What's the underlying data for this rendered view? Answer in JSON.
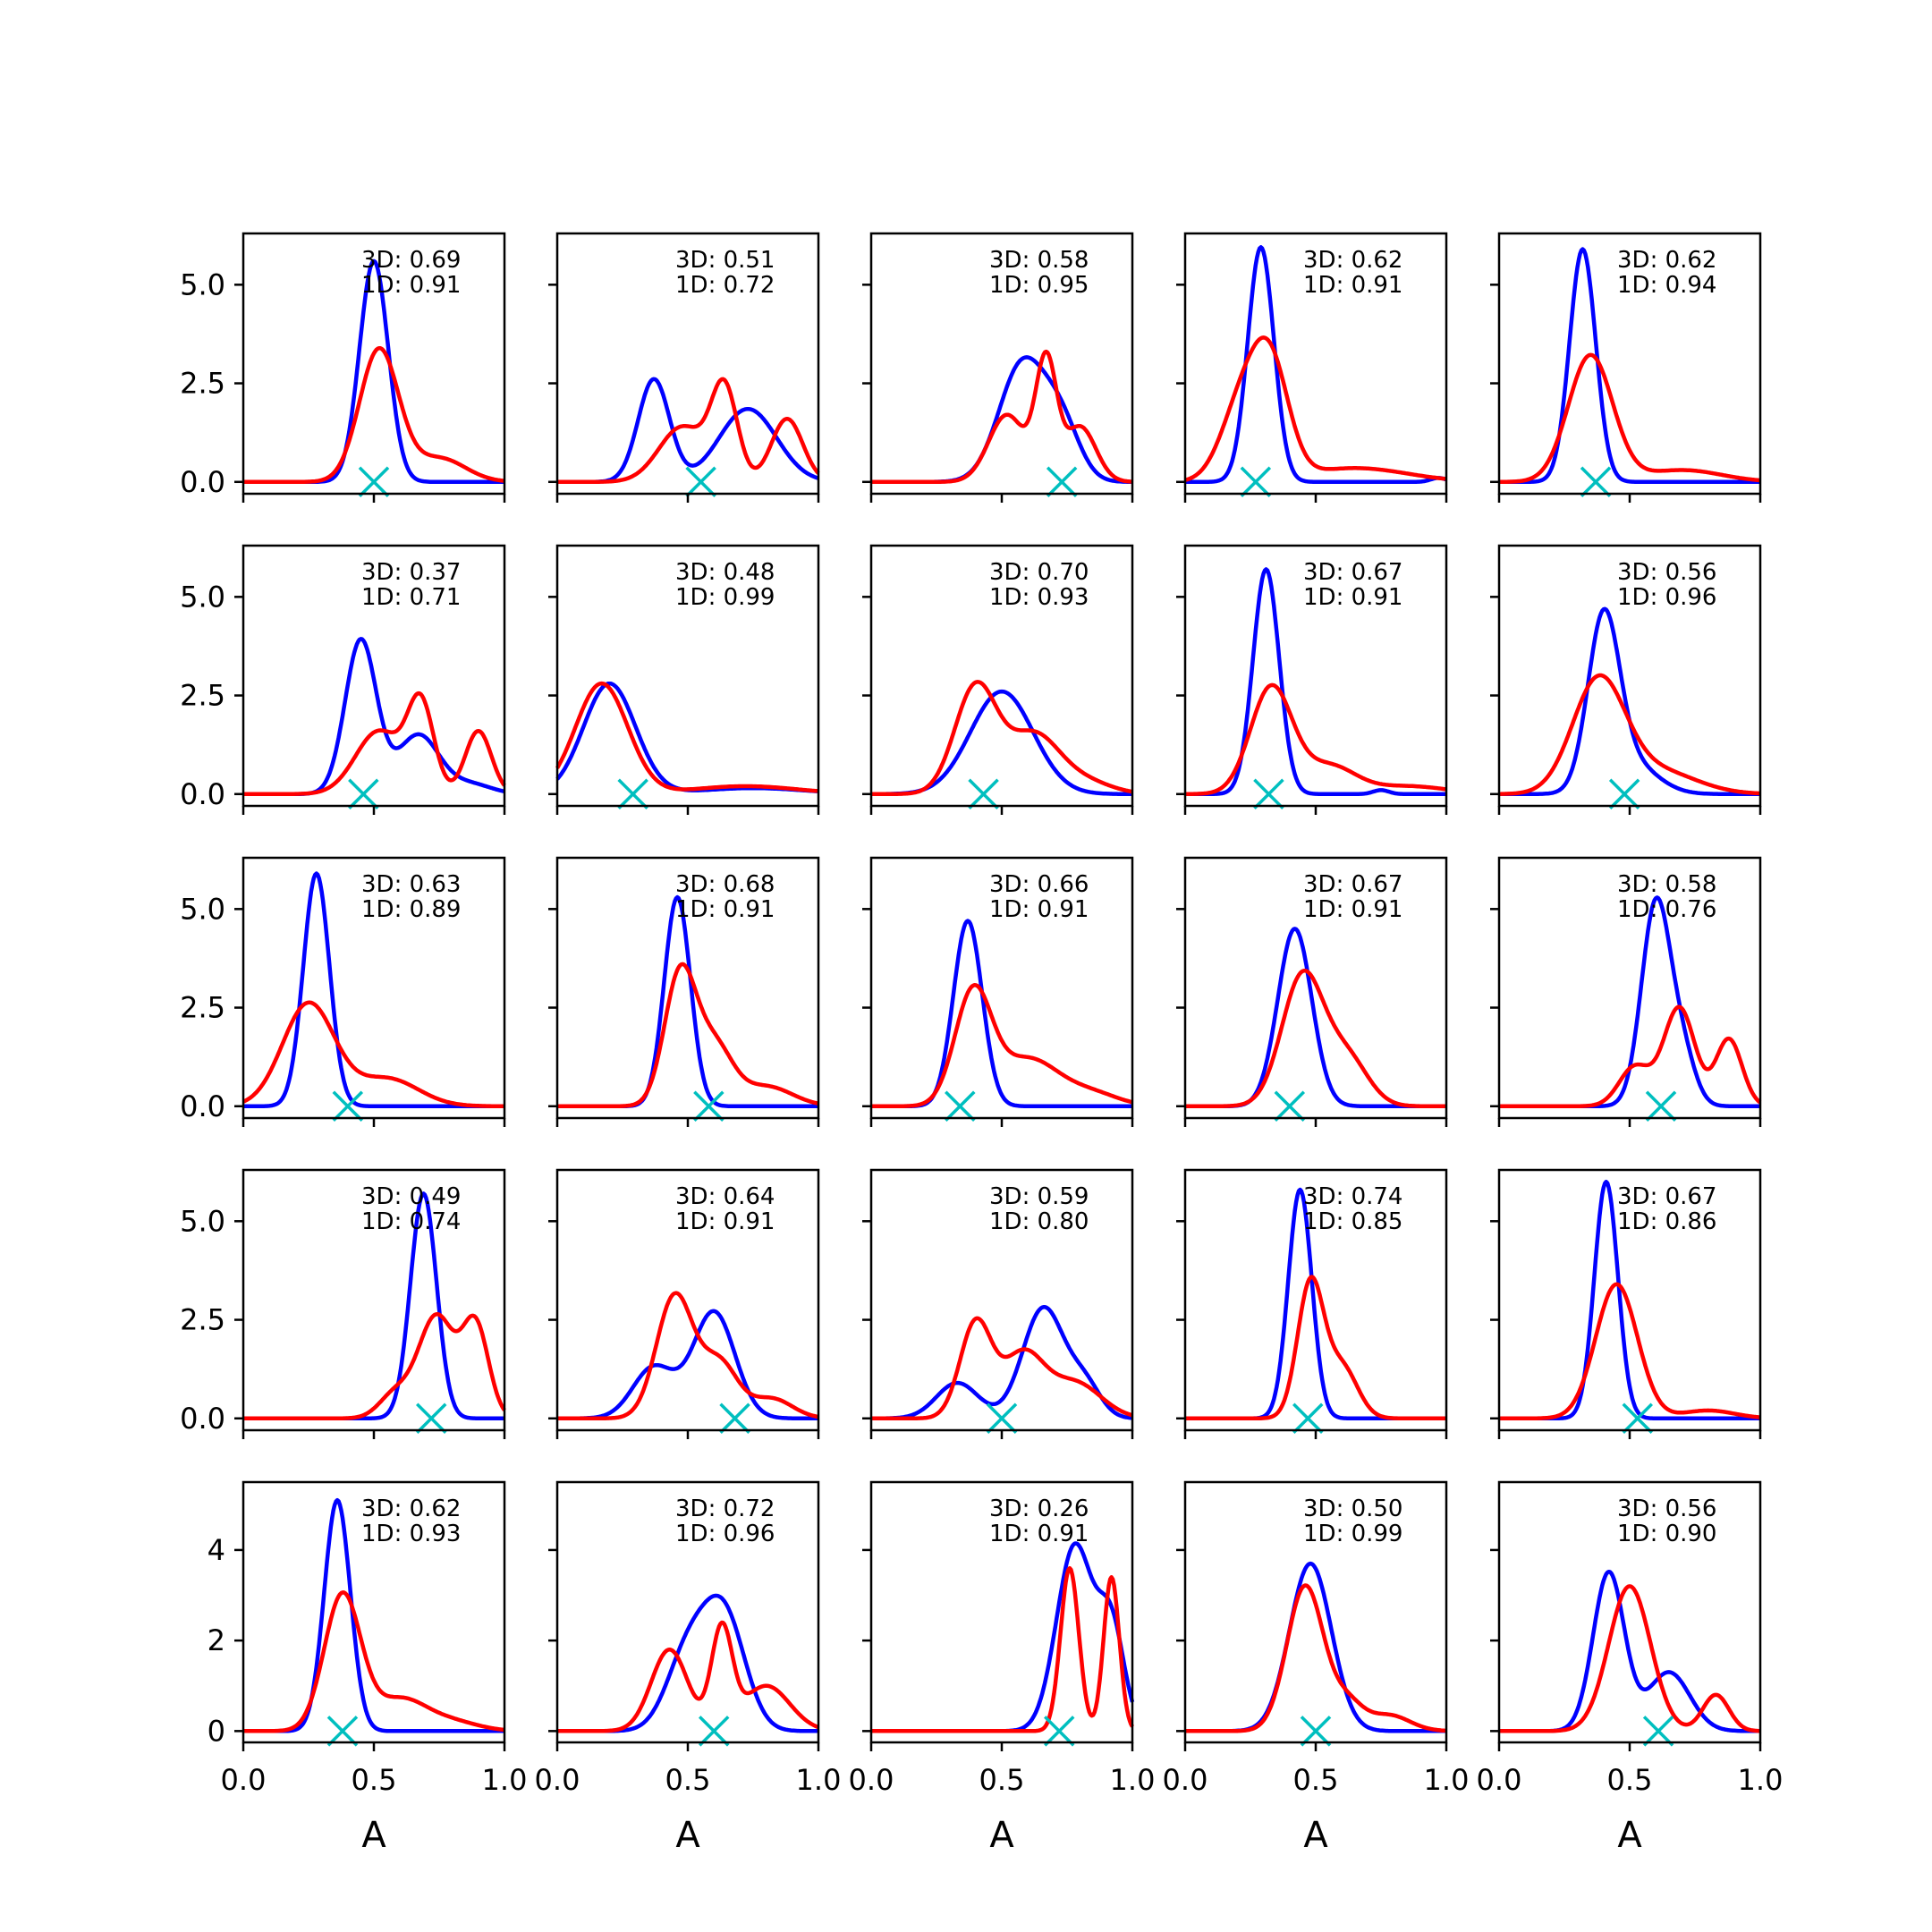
{
  "figure": {
    "x_tick_labels": [
      "0.0",
      "0.5",
      "1.0"
    ],
    "x_axis_label": "A",
    "y_tick_labels_rows_1_4": [
      "0.0",
      "2.5",
      "5.0"
    ],
    "y_tick_labels_row_5": [
      "0",
      "2",
      "4"
    ]
  },
  "colors": {
    "blue_series": "#0000ff",
    "red_series": "#ff0000",
    "marker": "#00bfbf"
  },
  "chart_data": [
    {
      "type": "line",
      "annotation": [
        "3D: 0.69",
        "1D: 0.91"
      ],
      "xlim": [
        0,
        1
      ],
      "ylim": [
        -0.3,
        6.3
      ],
      "marker_x": 0.5,
      "series": [
        {
          "color": "blue",
          "peaks": [
            [
              0.5,
              5.6,
              0.055
            ]
          ]
        },
        {
          "color": "red",
          "peaks": [
            [
              0.52,
              3.35,
              0.075
            ],
            [
              0.75,
              0.6,
              0.1
            ]
          ]
        }
      ]
    },
    {
      "type": "line",
      "annotation": [
        "3D: 0.51",
        "1D: 0.72"
      ],
      "xlim": [
        0,
        1
      ],
      "ylim": [
        -0.3,
        6.3
      ],
      "marker_x": 0.55,
      "series": [
        {
          "color": "blue",
          "peaks": [
            [
              0.37,
              2.6,
              0.06
            ],
            [
              0.73,
              1.85,
              0.11
            ]
          ]
        },
        {
          "color": "red",
          "peaks": [
            [
              0.48,
              1.4,
              0.09
            ],
            [
              0.64,
              2.3,
              0.05
            ],
            [
              0.88,
              1.6,
              0.06
            ]
          ]
        }
      ]
    },
    {
      "type": "line",
      "annotation": [
        "3D: 0.58",
        "1D: 0.95"
      ],
      "xlim": [
        0,
        1
      ],
      "ylim": [
        -0.3,
        6.3
      ],
      "marker_x": 0.73,
      "series": [
        {
          "color": "blue",
          "peaks": [
            [
              0.58,
              3.0,
              0.09
            ],
            [
              0.73,
              1.3,
              0.07
            ]
          ]
        },
        {
          "color": "red",
          "peaks": [
            [
              0.52,
              1.7,
              0.07
            ],
            [
              0.67,
              3.0,
              0.04
            ],
            [
              0.8,
              1.4,
              0.06
            ]
          ]
        }
      ]
    },
    {
      "type": "line",
      "annotation": [
        "3D: 0.62",
        "1D: 0.91"
      ],
      "xlim": [
        0,
        1
      ],
      "ylim": [
        -0.3,
        6.3
      ],
      "marker_x": 0.27,
      "series": [
        {
          "color": "blue",
          "peaks": [
            [
              0.29,
              5.95,
              0.05
            ],
            [
              0.97,
              0.1,
              0.03
            ]
          ]
        },
        {
          "color": "red",
          "peaks": [
            [
              0.22,
              2.0,
              0.08
            ],
            [
              0.33,
              2.6,
              0.07
            ],
            [
              0.65,
              0.35,
              0.2
            ]
          ]
        }
      ]
    },
    {
      "type": "line",
      "annotation": [
        "3D: 0.62",
        "1D: 0.94"
      ],
      "xlim": [
        0,
        1
      ],
      "ylim": [
        -0.3,
        6.3
      ],
      "marker_x": 0.37,
      "series": [
        {
          "color": "blue",
          "peaks": [
            [
              0.32,
              5.9,
              0.05
            ]
          ]
        },
        {
          "color": "red",
          "peaks": [
            [
              0.35,
              3.2,
              0.085
            ],
            [
              0.7,
              0.3,
              0.15
            ]
          ]
        }
      ]
    },
    {
      "type": "line",
      "annotation": [
        "3D: 0.37",
        "1D: 0.71"
      ],
      "xlim": [
        0,
        1
      ],
      "ylim": [
        -0.3,
        6.3
      ],
      "marker_x": 0.46,
      "series": [
        {
          "color": "blue",
          "peaks": [
            [
              0.45,
              3.9,
              0.06
            ],
            [
              0.67,
              1.5,
              0.08
            ],
            [
              0.87,
              0.25,
              0.08
            ]
          ]
        },
        {
          "color": "red",
          "peaks": [
            [
              0.52,
              1.6,
              0.09
            ],
            [
              0.68,
              2.2,
              0.05
            ],
            [
              0.9,
              1.6,
              0.05
            ]
          ]
        }
      ]
    },
    {
      "type": "line",
      "annotation": [
        "3D: 0.48",
        "1D: 0.99"
      ],
      "xlim": [
        0,
        1
      ],
      "ylim": [
        -0.3,
        6.3
      ],
      "marker_x": 0.29,
      "series": [
        {
          "color": "blue",
          "peaks": [
            [
              0.2,
              2.8,
              0.1
            ],
            [
              0.75,
              0.15,
              0.2
            ]
          ]
        },
        {
          "color": "red",
          "peaks": [
            [
              0.17,
              2.8,
              0.1
            ],
            [
              0.72,
              0.2,
              0.2
            ]
          ]
        }
      ]
    },
    {
      "type": "line",
      "annotation": [
        "3D: 0.70",
        "1D: 0.93"
      ],
      "xlim": [
        0,
        1
      ],
      "ylim": [
        -0.3,
        6.3
      ],
      "marker_x": 0.43,
      "series": [
        {
          "color": "blue",
          "peaks": [
            [
              0.5,
              2.6,
              0.12
            ]
          ]
        },
        {
          "color": "red",
          "peaks": [
            [
              0.4,
              2.7,
              0.08
            ],
            [
              0.62,
              1.5,
              0.1
            ],
            [
              0.82,
              0.3,
              0.1
            ]
          ]
        }
      ]
    },
    {
      "type": "line",
      "annotation": [
        "3D: 0.67",
        "1D: 0.91"
      ],
      "xlim": [
        0,
        1
      ],
      "ylim": [
        -0.3,
        6.3
      ],
      "marker_x": 0.32,
      "series": [
        {
          "color": "blue",
          "peaks": [
            [
              0.31,
              5.7,
              0.05
            ],
            [
              0.75,
              0.1,
              0.03
            ]
          ]
        },
        {
          "color": "red",
          "peaks": [
            [
              0.33,
              2.7,
              0.08
            ],
            [
              0.55,
              0.7,
              0.1
            ],
            [
              0.85,
              0.2,
              0.15
            ]
          ]
        }
      ]
    },
    {
      "type": "line",
      "annotation": [
        "3D: 0.56",
        "1D: 0.96"
      ],
      "xlim": [
        0,
        1
      ],
      "ylim": [
        -0.3,
        6.3
      ],
      "marker_x": 0.48,
      "series": [
        {
          "color": "blue",
          "peaks": [
            [
              0.4,
              4.2,
              0.06
            ],
            [
              0.5,
              0.8,
              0.1
            ]
          ]
        },
        {
          "color": "red",
          "peaks": [
            [
              0.38,
              2.8,
              0.1
            ],
            [
              0.6,
              0.6,
              0.15
            ]
          ]
        }
      ]
    },
    {
      "type": "line",
      "annotation": [
        "3D: 0.63",
        "1D: 0.89"
      ],
      "xlim": [
        0,
        1
      ],
      "ylim": [
        -0.3,
        6.3
      ],
      "marker_x": 0.4,
      "series": [
        {
          "color": "blue",
          "peaks": [
            [
              0.28,
              5.9,
              0.05
            ]
          ]
        },
        {
          "color": "red",
          "peaks": [
            [
              0.25,
              2.6,
              0.1
            ],
            [
              0.55,
              0.7,
              0.12
            ]
          ]
        }
      ]
    },
    {
      "type": "line",
      "annotation": [
        "3D: 0.68",
        "1D: 0.91"
      ],
      "xlim": [
        0,
        1
      ],
      "ylim": [
        -0.3,
        6.3
      ],
      "marker_x": 0.58,
      "series": [
        {
          "color": "blue",
          "peaks": [
            [
              0.46,
              5.3,
              0.05
            ]
          ]
        },
        {
          "color": "red",
          "peaks": [
            [
              0.47,
              3.3,
              0.06
            ],
            [
              0.6,
              1.5,
              0.07
            ],
            [
              0.8,
              0.5,
              0.1
            ]
          ]
        }
      ]
    },
    {
      "type": "line",
      "annotation": [
        "3D: 0.66",
        "1D: 0.91"
      ],
      "xlim": [
        0,
        1
      ],
      "ylim": [
        -0.3,
        6.3
      ],
      "marker_x": 0.34,
      "series": [
        {
          "color": "blue",
          "peaks": [
            [
              0.37,
              4.7,
              0.055
            ]
          ]
        },
        {
          "color": "red",
          "peaks": [
            [
              0.39,
              2.8,
              0.07
            ],
            [
              0.6,
              1.2,
              0.12
            ],
            [
              0.85,
              0.3,
              0.1
            ]
          ]
        }
      ]
    },
    {
      "type": "line",
      "annotation": [
        "3D: 0.67",
        "1D: 0.91"
      ],
      "xlim": [
        0,
        1
      ],
      "ylim": [
        -0.3,
        6.3
      ],
      "marker_x": 0.4,
      "series": [
        {
          "color": "blue",
          "peaks": [
            [
              0.42,
              4.5,
              0.065
            ]
          ]
        },
        {
          "color": "red",
          "peaks": [
            [
              0.45,
              3.3,
              0.08
            ],
            [
              0.62,
              1.2,
              0.08
            ]
          ]
        }
      ]
    },
    {
      "type": "line",
      "annotation": [
        "3D: 0.58",
        "1D: 0.76"
      ],
      "xlim": [
        0,
        1
      ],
      "ylim": [
        -0.3,
        6.3
      ],
      "marker_x": 0.62,
      "series": [
        {
          "color": "blue",
          "peaks": [
            [
              0.6,
              5.1,
              0.055
            ],
            [
              0.7,
              1.3,
              0.05
            ]
          ]
        },
        {
          "color": "red",
          "peaks": [
            [
              0.52,
              1.0,
              0.06
            ],
            [
              0.69,
              2.5,
              0.06
            ],
            [
              0.88,
              1.7,
              0.05
            ]
          ]
        }
      ]
    },
    {
      "type": "line",
      "annotation": [
        "3D: 0.49",
        "1D: 0.74"
      ],
      "xlim": [
        0,
        1
      ],
      "ylim": [
        -0.3,
        6.3
      ],
      "marker_x": 0.72,
      "series": [
        {
          "color": "blue",
          "peaks": [
            [
              0.69,
              5.7,
              0.05
            ]
          ]
        },
        {
          "color": "red",
          "peaks": [
            [
              0.58,
              0.6,
              0.06
            ],
            [
              0.74,
              2.6,
              0.07
            ],
            [
              0.89,
              2.3,
              0.05
            ]
          ]
        }
      ]
    },
    {
      "type": "line",
      "annotation": [
        "3D: 0.64",
        "1D: 0.91"
      ],
      "xlim": [
        0,
        1
      ],
      "ylim": [
        -0.3,
        6.3
      ],
      "marker_x": 0.68,
      "series": [
        {
          "color": "blue",
          "peaks": [
            [
              0.37,
              1.3,
              0.08
            ],
            [
              0.6,
              2.7,
              0.08
            ]
          ]
        },
        {
          "color": "red",
          "peaks": [
            [
              0.45,
              3.1,
              0.07
            ],
            [
              0.62,
              1.4,
              0.07
            ],
            [
              0.82,
              0.5,
              0.08
            ]
          ]
        }
      ]
    },
    {
      "type": "line",
      "annotation": [
        "3D: 0.59",
        "1D: 0.80"
      ],
      "xlim": [
        0,
        1
      ],
      "ylim": [
        -0.3,
        6.3
      ],
      "marker_x": 0.5,
      "series": [
        {
          "color": "blue",
          "peaks": [
            [
              0.33,
              0.9,
              0.08
            ],
            [
              0.66,
              2.8,
              0.08
            ],
            [
              0.82,
              0.8,
              0.06
            ]
          ]
        },
        {
          "color": "red",
          "peaks": [
            [
              0.4,
              2.4,
              0.06
            ],
            [
              0.58,
              1.6,
              0.08
            ],
            [
              0.78,
              0.9,
              0.1
            ]
          ]
        }
      ]
    },
    {
      "type": "line",
      "annotation": [
        "3D: 0.74",
        "1D: 0.85"
      ],
      "xlim": [
        0,
        1
      ],
      "ylim": [
        -0.3,
        6.3
      ],
      "marker_x": 0.47,
      "series": [
        {
          "color": "blue",
          "peaks": [
            [
              0.44,
              5.8,
              0.045
            ]
          ]
        },
        {
          "color": "red",
          "peaks": [
            [
              0.48,
              3.4,
              0.05
            ],
            [
              0.6,
              1.3,
              0.06
            ]
          ]
        }
      ]
    },
    {
      "type": "line",
      "annotation": [
        "3D: 0.67",
        "1D: 0.86"
      ],
      "xlim": [
        0,
        1
      ],
      "ylim": [
        -0.3,
        6.3
      ],
      "marker_x": 0.53,
      "series": [
        {
          "color": "blue",
          "peaks": [
            [
              0.41,
              6.0,
              0.045
            ]
          ]
        },
        {
          "color": "red",
          "peaks": [
            [
              0.45,
              3.4,
              0.08
            ],
            [
              0.8,
              0.2,
              0.1
            ]
          ]
        }
      ]
    },
    {
      "type": "line",
      "annotation": [
        "3D: 0.62",
        "1D: 0.93"
      ],
      "xlim": [
        0,
        1
      ],
      "ylim": [
        -0.25,
        5.5
      ],
      "marker_x": 0.38,
      "series": [
        {
          "color": "blue",
          "peaks": [
            [
              0.36,
              5.1,
              0.05
            ]
          ]
        },
        {
          "color": "red",
          "peaks": [
            [
              0.38,
              3.0,
              0.07
            ],
            [
              0.6,
              0.7,
              0.1
            ],
            [
              0.8,
              0.2,
              0.1
            ]
          ]
        }
      ]
    },
    {
      "type": "line",
      "annotation": [
        "3D: 0.72",
        "1D: 0.96"
      ],
      "xlim": [
        0,
        1
      ],
      "ylim": [
        -0.25,
        5.5
      ],
      "marker_x": 0.6,
      "series": [
        {
          "color": "blue",
          "peaks": [
            [
              0.5,
              1.7,
              0.08
            ],
            [
              0.64,
              2.5,
              0.08
            ]
          ]
        },
        {
          "color": "red",
          "peaks": [
            [
              0.43,
              1.8,
              0.07
            ],
            [
              0.63,
              2.2,
              0.04
            ],
            [
              0.8,
              1.0,
              0.09
            ]
          ]
        }
      ]
    },
    {
      "type": "line",
      "annotation": [
        "3D: 0.26",
        "1D: 0.91"
      ],
      "xlim": [
        0,
        1
      ],
      "ylim": [
        -0.25,
        5.5
      ],
      "marker_x": 0.72,
      "series": [
        {
          "color": "blue",
          "peaks": [
            [
              0.78,
              4.1,
              0.07
            ],
            [
              0.92,
              2.2,
              0.05
            ]
          ]
        },
        {
          "color": "red",
          "peaks": [
            [
              0.76,
              3.6,
              0.035
            ],
            [
              0.92,
              3.4,
              0.03
            ]
          ]
        }
      ]
    },
    {
      "type": "line",
      "annotation": [
        "3D: 0.50",
        "1D: 0.99"
      ],
      "xlim": [
        0,
        1
      ],
      "ylim": [
        -0.25,
        5.5
      ],
      "marker_x": 0.5,
      "series": [
        {
          "color": "blue",
          "peaks": [
            [
              0.48,
              3.7,
              0.08
            ]
          ]
        },
        {
          "color": "red",
          "peaks": [
            [
              0.46,
              3.2,
              0.07
            ],
            [
              0.62,
              0.6,
              0.06
            ],
            [
              0.78,
              0.35,
              0.08
            ]
          ]
        }
      ]
    },
    {
      "type": "line",
      "annotation": [
        "3D: 0.56",
        "1D: 0.90"
      ],
      "xlim": [
        0,
        1
      ],
      "ylim": [
        -0.25,
        5.5
      ],
      "marker_x": 0.61,
      "series": [
        {
          "color": "blue",
          "peaks": [
            [
              0.42,
              3.5,
              0.06
            ],
            [
              0.65,
              1.3,
              0.08
            ]
          ]
        },
        {
          "color": "red",
          "peaks": [
            [
              0.5,
              3.2,
              0.08
            ],
            [
              0.83,
              0.8,
              0.05
            ]
          ]
        }
      ]
    }
  ]
}
